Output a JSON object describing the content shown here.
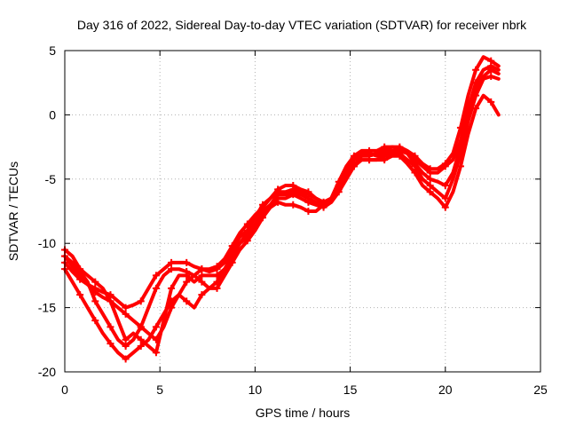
{
  "chart_data": {
    "type": "scatter",
    "title": "Day 316 of 2022, Sidereal Day-to-day VTEC variation (SDTVAR) for receiver nbrk",
    "xlabel": "GPS time / hours",
    "ylabel": "SDTVAR / TECUs",
    "xlim": [
      0,
      25
    ],
    "ylim": [
      -20,
      5
    ],
    "xticks": [
      0,
      5,
      10,
      15,
      20,
      25
    ],
    "yticks": [
      -20,
      -15,
      -10,
      -5,
      0,
      5
    ],
    "grid": true,
    "legend": "none",
    "marker": "plus",
    "color": "#ff0000",
    "series": [
      {
        "x": [
          0.0,
          0.4,
          0.8,
          1.2,
          1.6,
          2.0,
          2.4,
          2.8,
          3.2,
          3.6,
          4.0,
          4.4,
          4.8,
          5.2,
          5.6,
          6.0,
          6.4,
          6.8,
          7.2,
          7.6,
          8.0,
          8.4,
          8.8,
          9.2,
          9.6,
          10.0,
          10.4,
          10.8,
          11.2,
          11.6,
          12.0,
          12.4,
          12.8,
          13.2,
          13.6,
          14.0,
          14.4,
          14.8,
          15.2,
          15.6,
          16.0,
          16.4,
          16.8,
          17.2,
          17.6,
          18.0,
          18.4,
          18.8,
          19.2,
          19.6,
          20.0,
          20.4,
          20.8,
          21.2,
          21.6,
          22.0,
          22.4,
          22.8
        ],
        "y": [
          -11.5,
          -12.2,
          -12.8,
          -13.2,
          -13.5,
          -13.8,
          -14.0,
          -14.5,
          -15.0,
          -14.8,
          -14.5,
          -13.5,
          -12.5,
          -12.0,
          -11.5,
          -11.5,
          -11.5,
          -11.8,
          -12.0,
          -12.2,
          -12.0,
          -11.5,
          -10.5,
          -9.5,
          -9.0,
          -8.0,
          -7.0,
          -6.5,
          -6.0,
          -6.0,
          -5.8,
          -6.0,
          -6.2,
          -6.5,
          -6.8,
          -6.5,
          -5.5,
          -4.5,
          -3.5,
          -3.0,
          -3.0,
          -3.2,
          -3.0,
          -2.8,
          -2.8,
          -3.0,
          -3.5,
          -4.0,
          -4.5,
          -4.5,
          -4.0,
          -3.5,
          -2.0,
          0.5,
          2.5,
          3.5,
          3.8,
          3.5
        ]
      },
      {
        "x": [
          0.0,
          0.4,
          0.8,
          1.2,
          1.6,
          2.0,
          2.4,
          2.8,
          3.2,
          3.6,
          4.0,
          4.4,
          4.8,
          5.2,
          5.6,
          6.0,
          6.4,
          6.8,
          7.2,
          7.6,
          8.0,
          8.4,
          8.8,
          9.2,
          9.6,
          10.0,
          10.4,
          10.8,
          11.2,
          11.6,
          12.0,
          12.4,
          12.8,
          13.2,
          13.6,
          14.0,
          14.4,
          14.8,
          15.2,
          15.6,
          16.0,
          16.4,
          16.8,
          17.2,
          17.6,
          18.0,
          18.4,
          18.8,
          19.2,
          19.6,
          20.0,
          20.4,
          20.8,
          21.2,
          21.6,
          22.0,
          22.4,
          22.8
        ],
        "y": [
          -11.0,
          -11.5,
          -12.2,
          -13.0,
          -14.5,
          -15.5,
          -16.5,
          -17.5,
          -18.0,
          -17.5,
          -16.5,
          -15.0,
          -13.5,
          -12.5,
          -12.0,
          -12.0,
          -12.2,
          -12.5,
          -13.0,
          -13.5,
          -13.0,
          -12.0,
          -11.0,
          -10.0,
          -9.2,
          -8.5,
          -7.5,
          -7.0,
          -6.5,
          -6.5,
          -6.2,
          -6.5,
          -6.8,
          -7.0,
          -7.2,
          -6.8,
          -6.0,
          -5.0,
          -4.0,
          -3.5,
          -3.5,
          -3.5,
          -3.2,
          -3.0,
          -3.0,
          -3.5,
          -4.0,
          -5.0,
          -5.5,
          -6.0,
          -6.5,
          -5.0,
          -3.0,
          -0.5,
          1.5,
          2.8,
          3.0,
          2.8
        ]
      },
      {
        "x": [
          0.0,
          0.4,
          0.8,
          1.2,
          1.6,
          2.0,
          2.4,
          2.8,
          3.2,
          3.6,
          4.0,
          4.4,
          4.8,
          5.2,
          5.6,
          6.0,
          6.4,
          6.8,
          7.2,
          7.6,
          8.0,
          8.4,
          8.8,
          9.2,
          9.6,
          10.0,
          10.4,
          10.8,
          11.2,
          11.6,
          12.0,
          12.4,
          12.8,
          13.2,
          13.6,
          14.0,
          14.4,
          14.8,
          15.2,
          15.6,
          16.0,
          16.4,
          16.8,
          17.2,
          17.6,
          18.0,
          18.4,
          18.8,
          19.2,
          19.6,
          20.0,
          20.4,
          20.8,
          21.2,
          21.6,
          22.0,
          22.4,
          22.8
        ],
        "y": [
          -12.0,
          -13.0,
          -14.0,
          -15.0,
          -16.0,
          -17.0,
          -17.8,
          -18.5,
          -19.0,
          -18.5,
          -18.0,
          -17.5,
          -16.5,
          -15.5,
          -14.5,
          -14.0,
          -14.5,
          -15.0,
          -14.0,
          -13.5,
          -13.5,
          -12.5,
          -11.5,
          -10.5,
          -9.8,
          -9.0,
          -8.0,
          -7.2,
          -6.8,
          -7.0,
          -7.0,
          -7.2,
          -7.5,
          -7.5,
          -7.0,
          -6.5,
          -5.5,
          -4.5,
          -3.8,
          -3.5,
          -3.5,
          -3.5,
          -3.5,
          -3.2,
          -3.2,
          -3.8,
          -4.5,
          -5.5,
          -6.0,
          -6.5,
          -7.2,
          -6.0,
          -4.0,
          -1.5,
          0.5,
          1.5,
          1.0,
          0.0
        ]
      },
      {
        "x": [
          0.0,
          0.4,
          0.8,
          1.2,
          1.6,
          2.0,
          2.4,
          2.8,
          3.2,
          3.6,
          4.0,
          4.4,
          4.8,
          5.2,
          5.6,
          6.0,
          6.4,
          6.8,
          7.2,
          7.6,
          8.0,
          8.4,
          8.8,
          9.2,
          9.6,
          10.0,
          10.4,
          10.8,
          11.2,
          11.6,
          12.0,
          12.4,
          12.8,
          13.2,
          13.6,
          14.0,
          14.4,
          14.8,
          15.2,
          15.6,
          16.0,
          16.4,
          16.8,
          17.2,
          17.6,
          18.0,
          18.4,
          18.8,
          19.2,
          19.6,
          20.0,
          20.4,
          20.8,
          21.2,
          21.6,
          22.0,
          22.4,
          22.8
        ],
        "y": [
          -10.5,
          -11.0,
          -12.0,
          -12.5,
          -13.0,
          -13.5,
          -14.5,
          -16.0,
          -17.5,
          -17.0,
          -17.5,
          -18.0,
          -18.5,
          -16.0,
          -13.5,
          -12.5,
          -12.5,
          -13.0,
          -12.5,
          -12.5,
          -12.5,
          -12.0,
          -11.0,
          -10.0,
          -9.5,
          -8.8,
          -7.8,
          -7.0,
          -6.2,
          -6.2,
          -6.0,
          -6.2,
          -6.5,
          -6.8,
          -7.0,
          -6.8,
          -5.8,
          -4.8,
          -4.0,
          -3.2,
          -3.2,
          -3.0,
          -2.8,
          -2.5,
          -2.6,
          -3.0,
          -3.8,
          -4.5,
          -5.0,
          -5.2,
          -5.5,
          -4.5,
          -2.5,
          0.0,
          2.0,
          3.0,
          3.5,
          3.2
        ]
      },
      {
        "x": [
          0.0,
          0.4,
          0.8,
          1.2,
          1.6,
          2.0,
          2.4,
          2.8,
          3.2,
          3.6,
          4.0,
          4.4,
          4.8,
          5.2,
          5.6,
          6.0,
          6.4,
          6.8,
          7.2,
          7.6,
          8.0,
          8.4,
          8.8,
          9.2,
          9.6,
          10.0,
          10.4,
          10.8,
          11.2,
          11.6,
          12.0,
          12.4,
          12.8,
          13.2,
          13.6,
          14.0,
          14.4,
          14.8,
          15.2,
          15.6,
          16.0,
          16.4,
          16.8,
          17.2,
          17.6,
          18.0,
          18.4,
          18.8,
          19.2,
          19.6,
          20.0,
          20.4,
          20.8,
          21.2,
          21.6,
          22.0,
          22.4,
          22.8
        ],
        "y": [
          -11.0,
          -11.8,
          -12.5,
          -13.2,
          -13.8,
          -14.2,
          -14.5,
          -15.0,
          -15.5,
          -16.0,
          -16.5,
          -17.0,
          -17.5,
          -16.5,
          -15.0,
          -14.0,
          -13.0,
          -12.5,
          -12.0,
          -12.0,
          -11.8,
          -11.2,
          -10.2,
          -9.2,
          -8.5,
          -7.8,
          -7.2,
          -6.5,
          -5.8,
          -5.5,
          -5.5,
          -5.8,
          -6.0,
          -6.5,
          -6.8,
          -6.5,
          -5.2,
          -4.0,
          -3.2,
          -2.8,
          -2.8,
          -2.8,
          -2.5,
          -2.5,
          -2.5,
          -2.8,
          -3.2,
          -3.8,
          -4.2,
          -4.2,
          -3.8,
          -3.0,
          -1.0,
          1.5,
          3.5,
          4.5,
          4.2,
          3.8
        ]
      }
    ]
  }
}
